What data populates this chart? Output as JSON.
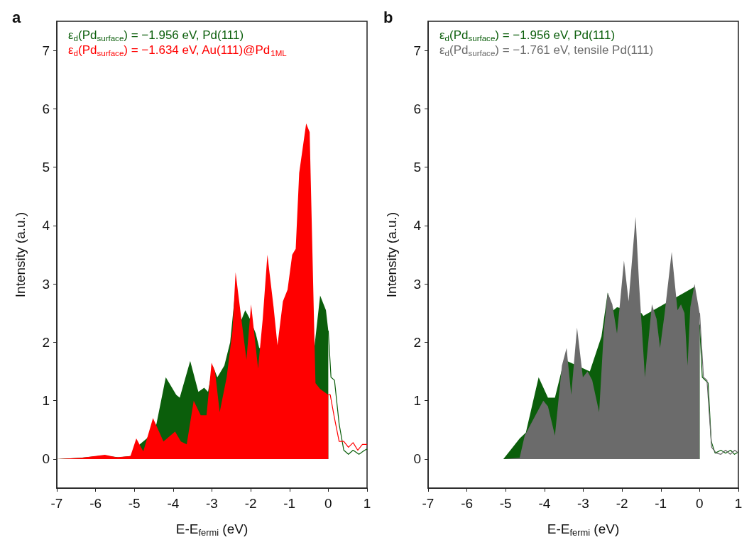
{
  "chart_data": [
    {
      "type": "area",
      "title": "a",
      "xlabel": "E-E$_{fermi}$ (eV)",
      "ylabel": "Intensity (a.u.)",
      "xlim": [
        -7,
        1
      ],
      "xticks": [
        -7,
        -6,
        -5,
        -4,
        -3,
        -2,
        -1,
        0,
        1
      ],
      "ylim": [
        -0.5,
        7.5
      ],
      "yticks": [
        0,
        1,
        2,
        3,
        4,
        5,
        6,
        7
      ],
      "legend": "top left",
      "series": [
        {
          "name": "ε$_{d}$(Pd$_{surface}$) = −1.956 eV, Pd(111)",
          "color": "#0b5e0b",
          "x": [
            -7,
            -6.4,
            -5.8,
            -5.4,
            -5.1,
            -4.86,
            -4.68,
            -4.43,
            -4.19,
            -3.92,
            -3.83,
            -3.56,
            -3.35,
            -3.2,
            -3.1,
            -2.98,
            -2.86,
            -2.68,
            -2.53,
            -2.41,
            -2.26,
            -2.14,
            -2.02,
            -1.87,
            -1.78,
            -0.36,
            -0.21,
            -0.06,
            0
          ],
          "values": [
            0,
            0.02,
            0.06,
            0.03,
            0.05,
            0.25,
            0.35,
            0.6,
            1.4,
            1.1,
            1.05,
            1.68,
            1.15,
            1.22,
            1.15,
            1.6,
            1.4,
            1.6,
            2.0,
            2.8,
            2.35,
            2.55,
            2.4,
            2.15,
            1.9,
            1.9,
            2.8,
            2.55,
            2.2
          ]
        },
        {
          "color": "#0b5e0b",
          "type": "line",
          "x": [
            0,
            0.07,
            0.16,
            0.28,
            0.4,
            0.52,
            0.64,
            0.79,
            0.94,
            1
          ],
          "values": [
            2.2,
            1.4,
            1.35,
            0.6,
            0.15,
            0.08,
            0.15,
            0.08,
            0.15,
            0.17
          ]
        },
        {
          "name": "ε$_{d}$(Pd$_{surface}$) = −1.634 eV, Au(111)@Pd$_{1ML}$",
          "color": "#ff0000",
          "x": [
            -7,
            -6.37,
            -5.76,
            -5.46,
            -5.1,
            -4.95,
            -4.77,
            -4.52,
            -4.25,
            -3.95,
            -3.8,
            -3.65,
            -3.47,
            -3.29,
            -3.14,
            -3.01,
            -2.92,
            -2.8,
            -2.62,
            -2.47,
            -2.39,
            -2.26,
            -2.11,
            -1.99,
            -1.81,
            -1.69,
            -1.57,
            -1.41,
            -1.31,
            -1.17,
            -1.05,
            -0.93,
            -0.84,
            -0.75,
            -0.57,
            -0.48,
            -0.39,
            -0.33,
            -0.21,
            0
          ],
          "values": [
            0,
            0.02,
            0.07,
            0.03,
            0.05,
            0.35,
            0.13,
            0.7,
            0.3,
            0.47,
            0.3,
            0.25,
            1.0,
            0.75,
            0.75,
            1.65,
            1.5,
            0.8,
            1.4,
            2.2,
            3.2,
            2.5,
            1.7,
            2.65,
            1.55,
            2.4,
            3.5,
            2.6,
            1.95,
            2.7,
            2.9,
            3.5,
            3.6,
            4.9,
            5.75,
            5.6,
            3.0,
            1.3,
            1.2,
            1.1
          ]
        },
        {
          "color": "#ff0000",
          "type": "line",
          "x": [
            0,
            0.05,
            0.16,
            0.28,
            0.4,
            0.52,
            0.64,
            0.76,
            0.88,
            1
          ],
          "values": [
            1.1,
            1.1,
            0.7,
            0.3,
            0.3,
            0.2,
            0.28,
            0.15,
            0.25,
            0.25
          ]
        }
      ]
    },
    {
      "type": "area",
      "title": "b",
      "xlabel": "E-E$_{fermi}$ (eV)",
      "ylabel": "Intensity (a.u.)",
      "xlim": [
        -7,
        1
      ],
      "xticks": [
        -7,
        -6,
        -5,
        -4,
        -3,
        -2,
        -1,
        0,
        1
      ],
      "ylim": [
        -0.5,
        7.5
      ],
      "yticks": [
        0,
        1,
        2,
        3,
        4,
        5,
        6,
        7
      ],
      "legend": "top left",
      "series": [
        {
          "name": "ε$_{d}$(Pd$_{surface}$) = −1.956 eV, Pd(111)",
          "color": "#0b5e0b",
          "x": [
            -7,
            -5.06,
            -4.82,
            -4.64,
            -4.48,
            -4.15,
            -3.91,
            -3.73,
            -3.49,
            -2.83,
            -2.53,
            -2.37,
            -2.22,
            -2.13,
            -1.5,
            -1.45,
            -0.13,
            0
          ],
          "values": [
            0,
            0,
            0.2,
            0.35,
            0.45,
            1.4,
            1.05,
            1.05,
            1.7,
            1.5,
            2.1,
            2.85,
            2.55,
            2.6,
            2.5,
            2.45,
            2.95,
            2.3
          ]
        },
        {
          "color": "#0b5e0b",
          "type": "line",
          "x": [
            0,
            0.07,
            0.22,
            0.3,
            0.4,
            0.55,
            0.67,
            0.8,
            0.9,
            1
          ],
          "values": [
            2.3,
            1.4,
            1.3,
            0.3,
            0.1,
            0.15,
            0.1,
            0.15,
            0.08,
            0.12
          ]
        },
        {
          "name": "ε$_{d}$(Pd$_{surface}$) = −1.761 eV, tensile Pd(111)",
          "color": "#6b6b6b",
          "x": [
            -7,
            -5.06,
            -4.64,
            -4.51,
            -4.27,
            -4.03,
            -3.91,
            -3.73,
            -3.55,
            -3.43,
            -3.31,
            -3.16,
            -3.01,
            -2.89,
            -2.77,
            -2.59,
            -2.47,
            -2.37,
            -2.25,
            -2.13,
            -2.07,
            -1.95,
            -1.83,
            -1.65,
            -1.56,
            -1.41,
            -1.23,
            -1.11,
            -1.02,
            -0.9,
            -0.72,
            -0.57,
            -0.48,
            -0.39,
            -0.31,
            -0.24,
            -0.13,
            0
          ],
          "values": [
            0,
            0,
            0.02,
            0.4,
            0.7,
            1.0,
            0.9,
            0.4,
            1.6,
            1.9,
            1.1,
            2.25,
            1.4,
            1.5,
            1.35,
            0.8,
            2.2,
            2.85,
            2.65,
            2.15,
            2.55,
            3.4,
            2.7,
            4.15,
            3.0,
            1.4,
            2.65,
            2.4,
            1.9,
            2.5,
            3.55,
            2.55,
            2.65,
            2.5,
            1.6,
            2.6,
            3.0,
            2.5
          ]
        },
        {
          "color": "#6b6b6b",
          "type": "line",
          "x": [
            0,
            0.1,
            0.19,
            0.31,
            0.43,
            0.55,
            0.67,
            0.79,
            0.91,
            1
          ],
          "values": [
            2.5,
            1.4,
            1.35,
            0.2,
            0.1,
            0.08,
            0.15,
            0.08,
            0.15,
            0.1
          ]
        }
      ]
    }
  ]
}
